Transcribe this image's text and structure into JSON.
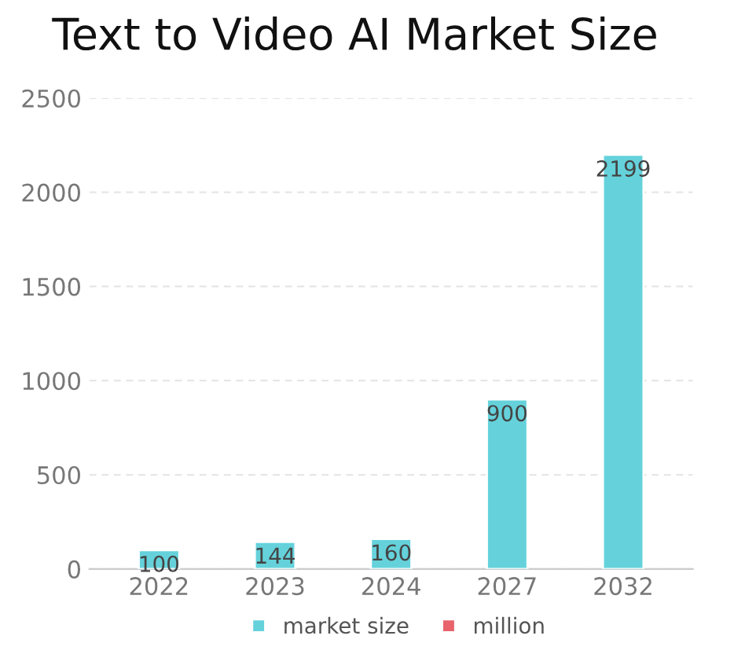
{
  "chart_data": {
    "type": "bar",
    "title": "Text to Video AI Market Size",
    "categories": [
      "2022",
      "2023",
      "2024",
      "2027",
      "2032"
    ],
    "series": [
      {
        "name": "market size",
        "color": "#65d2db",
        "values": [
          100,
          144,
          160,
          900,
          2199
        ]
      },
      {
        "name": "million",
        "color": "#e8636c",
        "values": [
          null,
          null,
          null,
          null,
          null
        ]
      }
    ],
    "ylim": [
      0,
      2500
    ],
    "yticks": [
      0,
      500,
      1000,
      1500,
      2000,
      2500
    ],
    "grid": "y",
    "legend": "bottom",
    "data_labels": true
  }
}
